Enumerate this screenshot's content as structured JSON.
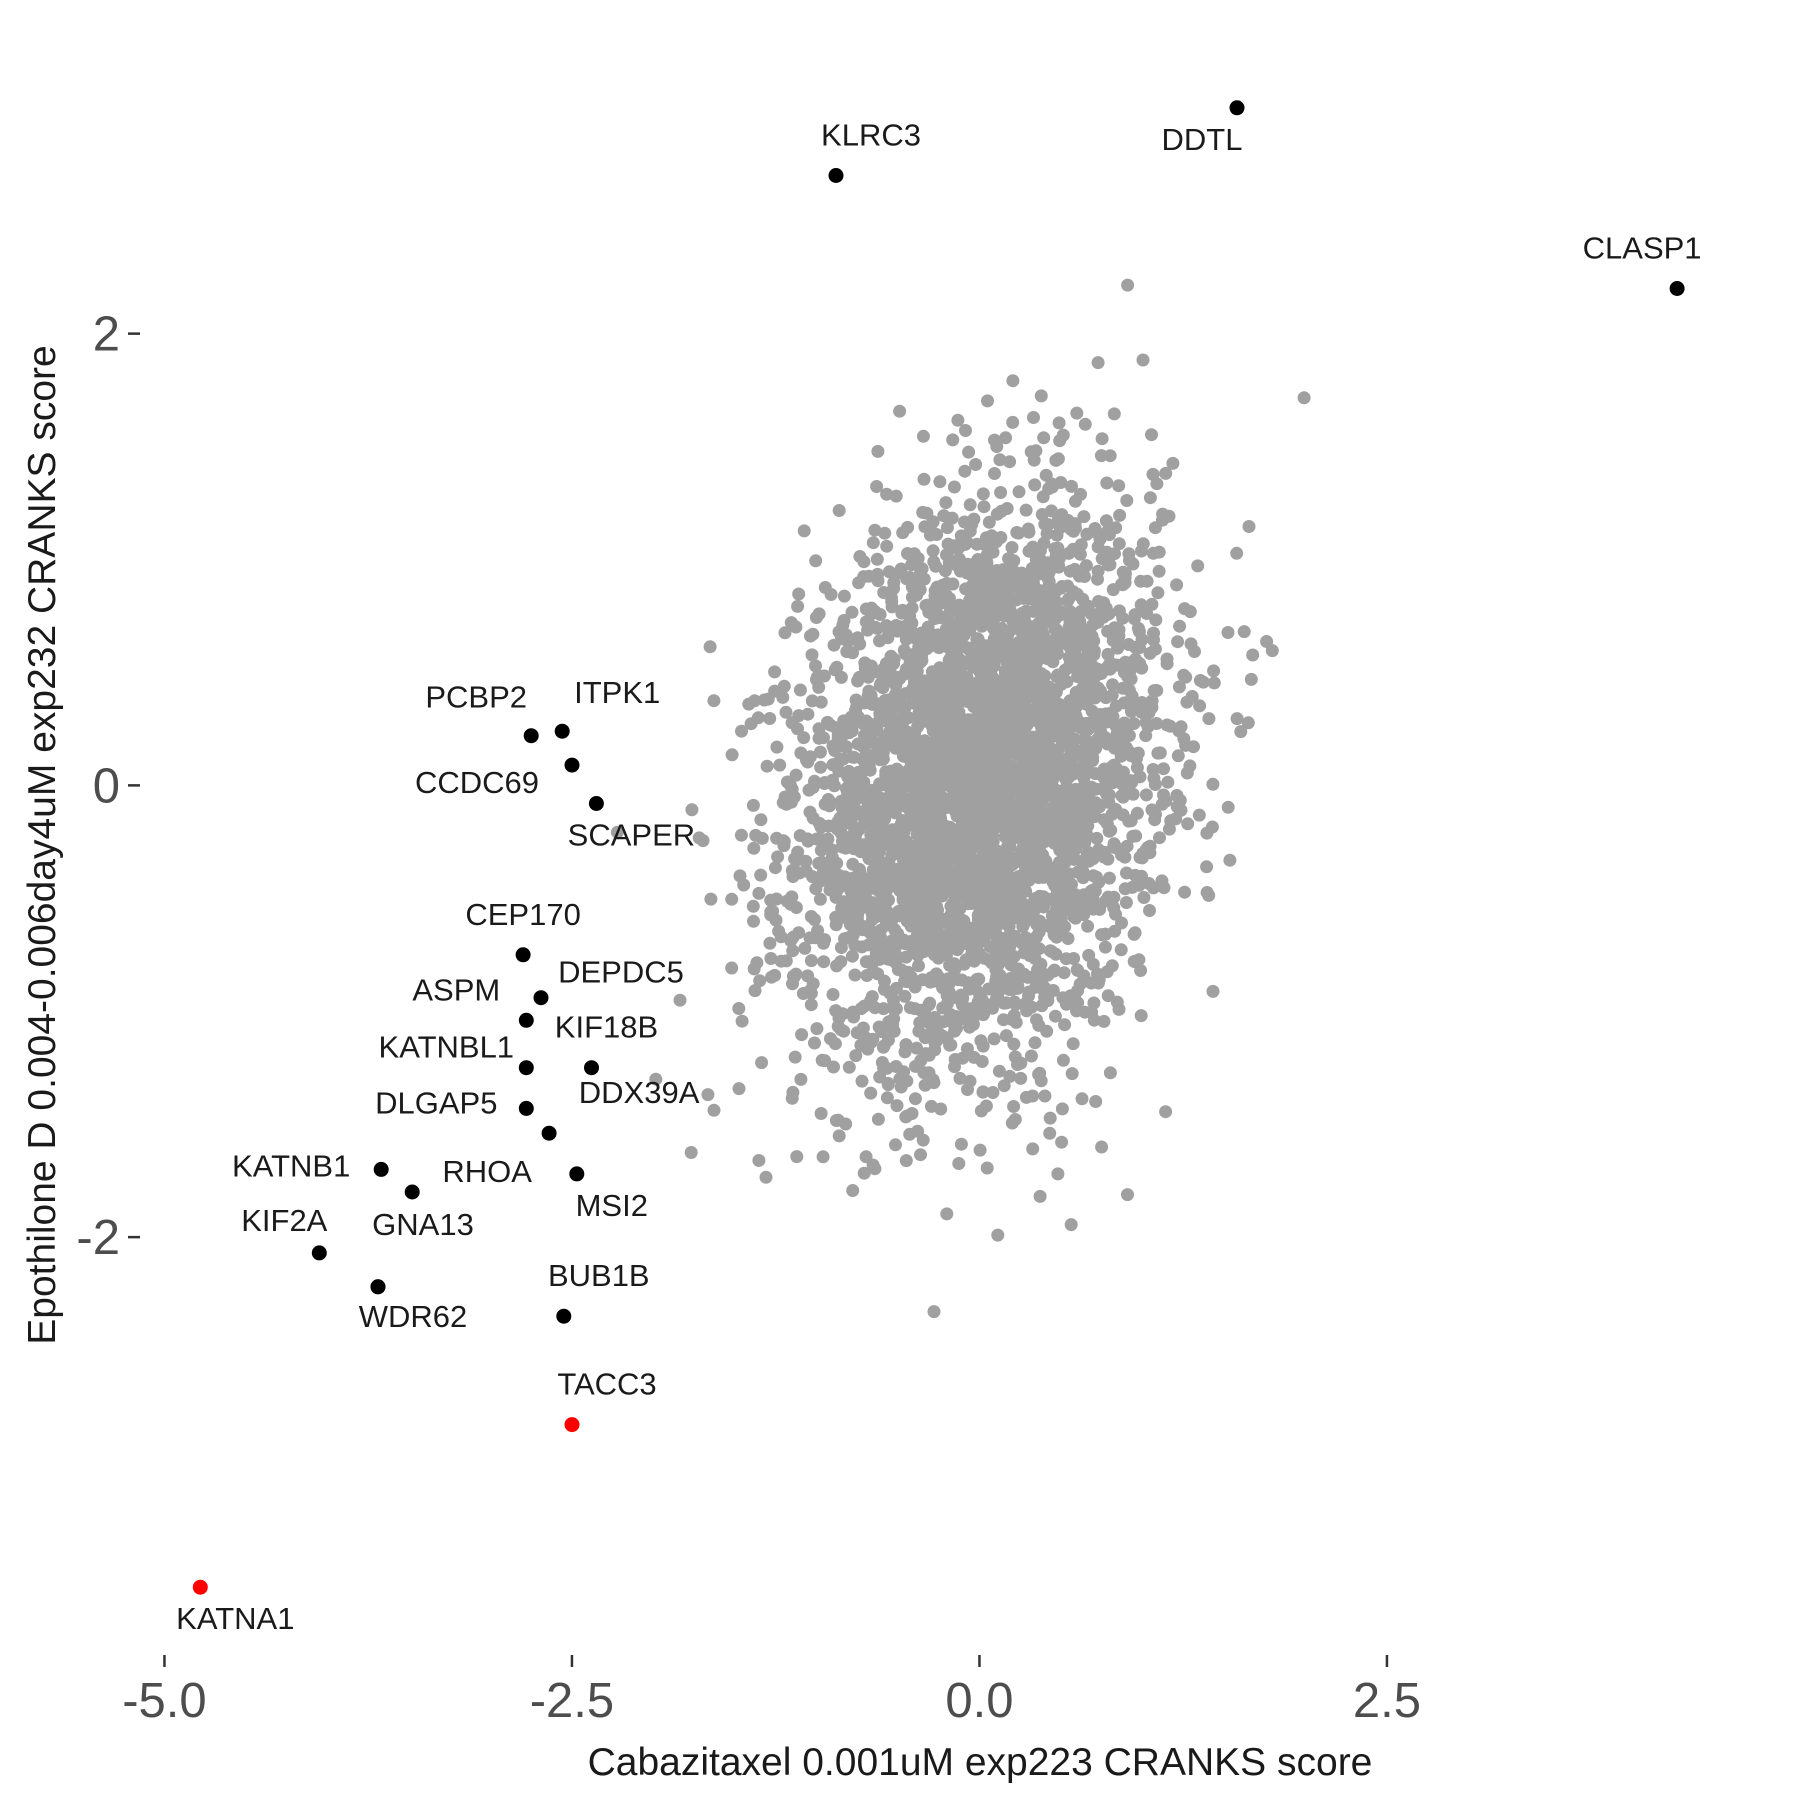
{
  "chart_data": {
    "type": "scatter",
    "title": "",
    "xlabel": "Cabazitaxel 0.001uM exp223 CRANKS score",
    "ylabel": "Epothilone D 0.004-0.006day4uM exp232 CRANKS score",
    "xlim": [
      -5.15,
      4.85
    ],
    "ylim": [
      -3.85,
      3.3
    ],
    "x_ticks": [
      {
        "value": -5.0,
        "label": "-5.0"
      },
      {
        "value": -2.5,
        "label": "-2.5"
      },
      {
        "value": 0.0,
        "label": "0.0"
      },
      {
        "value": 2.5,
        "label": "2.5"
      }
    ],
    "y_ticks": [
      {
        "value": 2,
        "label": "2"
      },
      {
        "value": 0,
        "label": "0"
      },
      {
        "value": -2,
        "label": "-2"
      }
    ],
    "grid": false,
    "legend": "none",
    "colors": {
      "background_points": "#a0a0a0",
      "highlight": "#000000",
      "emphasis": "#ff0000"
    },
    "background_cloud": {
      "description_count": 4000,
      "center": [
        0.0,
        0.0
      ],
      "sd": [
        0.55,
        0.6
      ],
      "correlation": 0.2
    },
    "highlighted_points": [
      {
        "label": "DDTL",
        "x": 1.58,
        "y": 3.0,
        "color": "#000000"
      },
      {
        "label": "KLRC3",
        "x": -0.88,
        "y": 2.7,
        "color": "#000000"
      },
      {
        "label": "CLASP1",
        "x": 4.28,
        "y": 2.2,
        "color": "#000000"
      },
      {
        "label": "PCBP2",
        "x": -2.75,
        "y": 0.22,
        "color": "#000000"
      },
      {
        "label": "ITPK1",
        "x": -2.56,
        "y": 0.24,
        "color": "#000000"
      },
      {
        "label": "CCDC69",
        "x": -2.5,
        "y": 0.09,
        "color": "#000000"
      },
      {
        "label": "SCAPER",
        "x": -2.35,
        "y": -0.08,
        "color": "#000000"
      },
      {
        "label": "CEP170",
        "x": -2.8,
        "y": -0.75,
        "color": "#000000"
      },
      {
        "label": "DEPDC5",
        "x": -2.69,
        "y": -0.94,
        "color": "#000000"
      },
      {
        "label": "ASPM",
        "x": -2.78,
        "y": -1.04,
        "color": "#000000"
      },
      {
        "label": "KATNBL1",
        "x": -2.78,
        "y": -1.25,
        "color": "#000000"
      },
      {
        "label": "KIF18B",
        "x": -2.38,
        "y": -1.25,
        "color": "#000000"
      },
      {
        "label": "DLGAP5",
        "x": -2.78,
        "y": -1.43,
        "color": "#000000"
      },
      {
        "label": "DDX39A",
        "x": -2.64,
        "y": -1.54,
        "color": "#000000"
      },
      {
        "label": "KATNB1",
        "x": -3.67,
        "y": -1.7,
        "color": "#000000"
      },
      {
        "label": "RHOA",
        "x": -3.48,
        "y": -1.8,
        "color": "#000000"
      },
      {
        "label": "MSI2",
        "x": -2.47,
        "y": -1.72,
        "color": "#000000"
      },
      {
        "label": "KIF2A",
        "x": -4.05,
        "y": -2.07,
        "color": "#000000"
      },
      {
        "label": "GNA13",
        "x": -3.69,
        "y": -2.22,
        "color": "#000000"
      },
      {
        "label": "WDR62",
        "x": -3.69,
        "y": -2.22,
        "color": "#000000"
      },
      {
        "label": "BUB1B",
        "x": -2.55,
        "y": -2.35,
        "color": "#000000"
      },
      {
        "label": "TACC3",
        "x": -2.5,
        "y": -2.83,
        "color": "#ff0000"
      },
      {
        "label": "KATNA1",
        "x": -4.78,
        "y": -3.55,
        "color": "#ff0000"
      }
    ]
  }
}
